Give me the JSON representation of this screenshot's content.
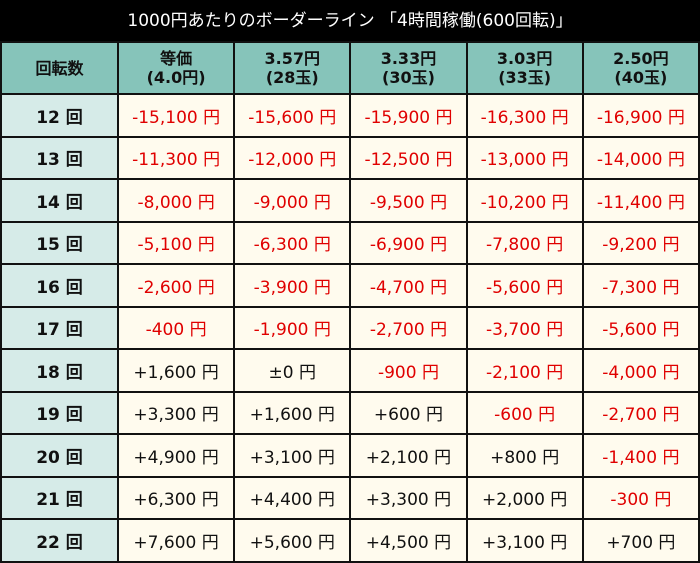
{
  "title": "1000円あたりのボーダーライン 「4時間稼働(600回転)」",
  "headers": [
    {
      "line1": "回転数",
      "line2": ""
    },
    {
      "line1": "等価",
      "line2": "(4.0円)"
    },
    {
      "line1": "3.57円",
      "line2": "(28玉)"
    },
    {
      "line1": "3.33円",
      "line2": "(30玉)"
    },
    {
      "line1": "3.03円",
      "line2": "(33玉)"
    },
    {
      "line1": "2.50円",
      "line2": "(40玉)"
    }
  ],
  "rows": [
    [
      "12 回",
      "-15,100 円",
      "-15,600 円",
      "-15,900 円",
      "-16,300 円",
      "-16,900 円"
    ],
    [
      "13 回",
      "-11,300 円",
      "-12,000 円",
      "-12,500 円",
      "-13,000 円",
      "-14,000 円"
    ],
    [
      "14 回",
      "-8,000 円",
      "-9,000 円",
      "-9,500 円",
      "-10,200 円",
      "-11,400 円"
    ],
    [
      "15 回",
      "-5,100 円",
      "-6,300 円",
      "-6,900 円",
      "-7,800 円",
      "-9,200 円"
    ],
    [
      "16 回",
      "-2,600 円",
      "-3,900 円",
      "-4,700 円",
      "-5,600 円",
      "-7,300 円"
    ],
    [
      "17 回",
      "-400 円",
      "-1,900 円",
      "-2,700 円",
      "-3,700 円",
      "-5,600 円"
    ],
    [
      "18 回",
      "+1,600 円",
      "±0 円",
      "-900 円",
      "-2,100 円",
      "-4,000 円"
    ],
    [
      "19 回",
      "+3,300 円",
      "+1,600 円",
      "+600 円",
      "-600 円",
      "-2,700 円"
    ],
    [
      "20 回",
      "+4,900 円",
      "+3,100 円",
      "+2,100 円",
      "+800 円",
      "-1,400 円"
    ],
    [
      "21 回",
      "+6,300 円",
      "+4,400 円",
      "+3,300 円",
      "+2,000 円",
      "-300 円"
    ],
    [
      "22 回",
      "+7,600 円",
      "+5,600 円",
      "+4,500 円",
      "+3,100 円",
      "+700 円"
    ]
  ],
  "colors": {
    "negative": "#e00000",
    "positive": "#111111",
    "header_bg": "#86c4ba",
    "first_col_bg": "#d6ebe8",
    "cell_bg": "#fffbee"
  }
}
